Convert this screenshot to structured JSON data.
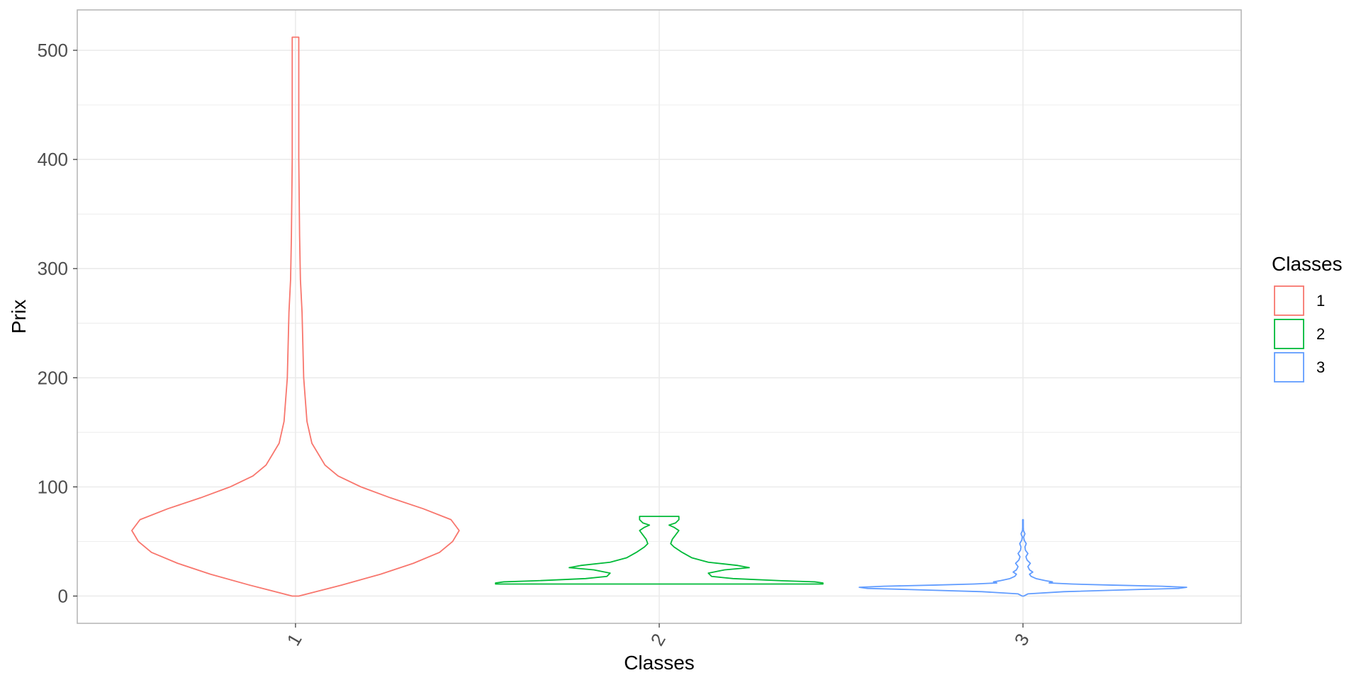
{
  "chart_data": {
    "type": "violin",
    "xlabel": "Classes",
    "ylabel": "Prix",
    "categories": [
      "1",
      "2",
      "3"
    ],
    "ylim": [
      -25,
      537
    ],
    "yticks": [
      0,
      100,
      200,
      300,
      400,
      500
    ],
    "grid": true,
    "legend": {
      "title": "Classes",
      "position": "right",
      "entries": [
        "1",
        "2",
        "3"
      ]
    },
    "series": [
      {
        "name": "1",
        "color": "#F8766D",
        "min": 0,
        "max": 512,
        "density": [
          [
            0,
            0.02
          ],
          [
            10,
            0.28
          ],
          [
            20,
            0.52
          ],
          [
            30,
            0.72
          ],
          [
            40,
            0.88
          ],
          [
            50,
            0.96
          ],
          [
            60,
            1.0
          ],
          [
            70,
            0.95
          ],
          [
            80,
            0.78
          ],
          [
            90,
            0.58
          ],
          [
            100,
            0.4
          ],
          [
            110,
            0.26
          ],
          [
            120,
            0.18
          ],
          [
            140,
            0.1
          ],
          [
            160,
            0.07
          ],
          [
            200,
            0.05
          ],
          [
            260,
            0.04
          ],
          [
            290,
            0.03
          ],
          [
            330,
            0.025
          ],
          [
            400,
            0.02
          ],
          [
            460,
            0.02
          ],
          [
            512,
            0.02
          ]
        ]
      },
      {
        "name": "2",
        "color": "#00BA38",
        "min": 11,
        "max": 73,
        "density": [
          [
            11,
            1.0
          ],
          [
            12,
            1.0
          ],
          [
            13,
            0.95
          ],
          [
            14,
            0.75
          ],
          [
            16,
            0.45
          ],
          [
            18,
            0.32
          ],
          [
            21,
            0.3
          ],
          [
            24,
            0.4
          ],
          [
            26,
            0.55
          ],
          [
            28,
            0.48
          ],
          [
            31,
            0.3
          ],
          [
            35,
            0.2
          ],
          [
            40,
            0.14
          ],
          [
            45,
            0.09
          ],
          [
            48,
            0.07
          ],
          [
            52,
            0.08
          ],
          [
            56,
            0.1
          ],
          [
            60,
            0.12
          ],
          [
            63,
            0.09
          ],
          [
            65,
            0.06
          ],
          [
            67,
            0.1
          ],
          [
            70,
            0.12
          ],
          [
            73,
            0.12
          ]
        ]
      },
      {
        "name": "3",
        "color": "#619CFF",
        "min": 0,
        "max": 70,
        "density": [
          [
            0,
            0.005
          ],
          [
            2,
            0.03
          ],
          [
            4,
            0.25
          ],
          [
            6,
            0.7
          ],
          [
            7,
            0.95
          ],
          [
            8,
            1.0
          ],
          [
            9,
            0.85
          ],
          [
            10,
            0.55
          ],
          [
            11,
            0.3
          ],
          [
            12,
            0.16
          ],
          [
            13,
            0.18
          ],
          [
            14,
            0.14
          ],
          [
            16,
            0.08
          ],
          [
            18,
            0.05
          ],
          [
            20,
            0.04
          ],
          [
            22,
            0.06
          ],
          [
            24,
            0.04
          ],
          [
            27,
            0.03
          ],
          [
            30,
            0.045
          ],
          [
            33,
            0.025
          ],
          [
            36,
            0.018
          ],
          [
            39,
            0.03
          ],
          [
            42,
            0.015
          ],
          [
            45,
            0.012
          ],
          [
            48,
            0.02
          ],
          [
            51,
            0.008
          ],
          [
            54,
            0.004
          ],
          [
            57,
            0.012
          ],
          [
            60,
            0.003
          ],
          [
            63,
            0.002
          ],
          [
            67,
            0.002
          ],
          [
            70,
            0.002
          ]
        ]
      }
    ]
  }
}
